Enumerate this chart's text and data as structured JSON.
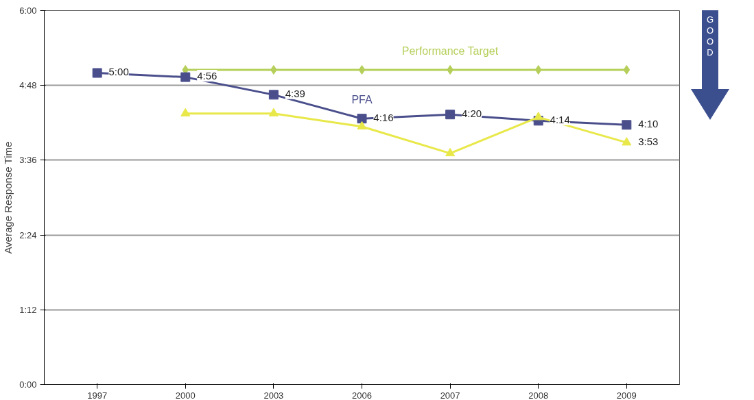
{
  "chart_data": {
    "type": "line",
    "ylabel": "Average Response Time",
    "categories": [
      "1997",
      "2000",
      "2003",
      "2006",
      "2007",
      "2008",
      "2009"
    ],
    "series": [
      {
        "name": "Performance Target",
        "color": "#b5cf5a",
        "marker": "diamond",
        "values": [
          null,
          5.05,
          5.05,
          5.05,
          5.05,
          5.05,
          5.05
        ]
      },
      {
        "name": "PFA",
        "color": "#4a4f8c",
        "marker": "square",
        "values": [
          5.0,
          4.933,
          4.65,
          4.267,
          4.333,
          4.233,
          4.167
        ],
        "value_labels": [
          "5:00",
          "4:56",
          "4:39",
          "4:16",
          "4:20",
          "4:14",
          "4:10"
        ]
      },
      {
        "color": "#e8e84a",
        "marker": "triangle",
        "values": [
          null,
          4.35,
          4.35,
          4.14,
          3.71,
          4.29,
          3.883
        ],
        "value_labels": [
          null,
          null,
          null,
          null,
          null,
          null,
          "3:53"
        ]
      }
    ],
    "ylim": [
      0,
      6
    ],
    "yticks": [
      {
        "value": 0,
        "label": "0:00"
      },
      {
        "value": 1.2,
        "label": "1:12"
      },
      {
        "value": 2.4,
        "label": "2:24"
      },
      {
        "value": 3.6,
        "label": "3:36"
      },
      {
        "value": 4.8,
        "label": "4:48"
      },
      {
        "value": 6,
        "label": "6:00"
      }
    ],
    "grid": "y",
    "annotations": [
      "GOOD"
    ]
  }
}
